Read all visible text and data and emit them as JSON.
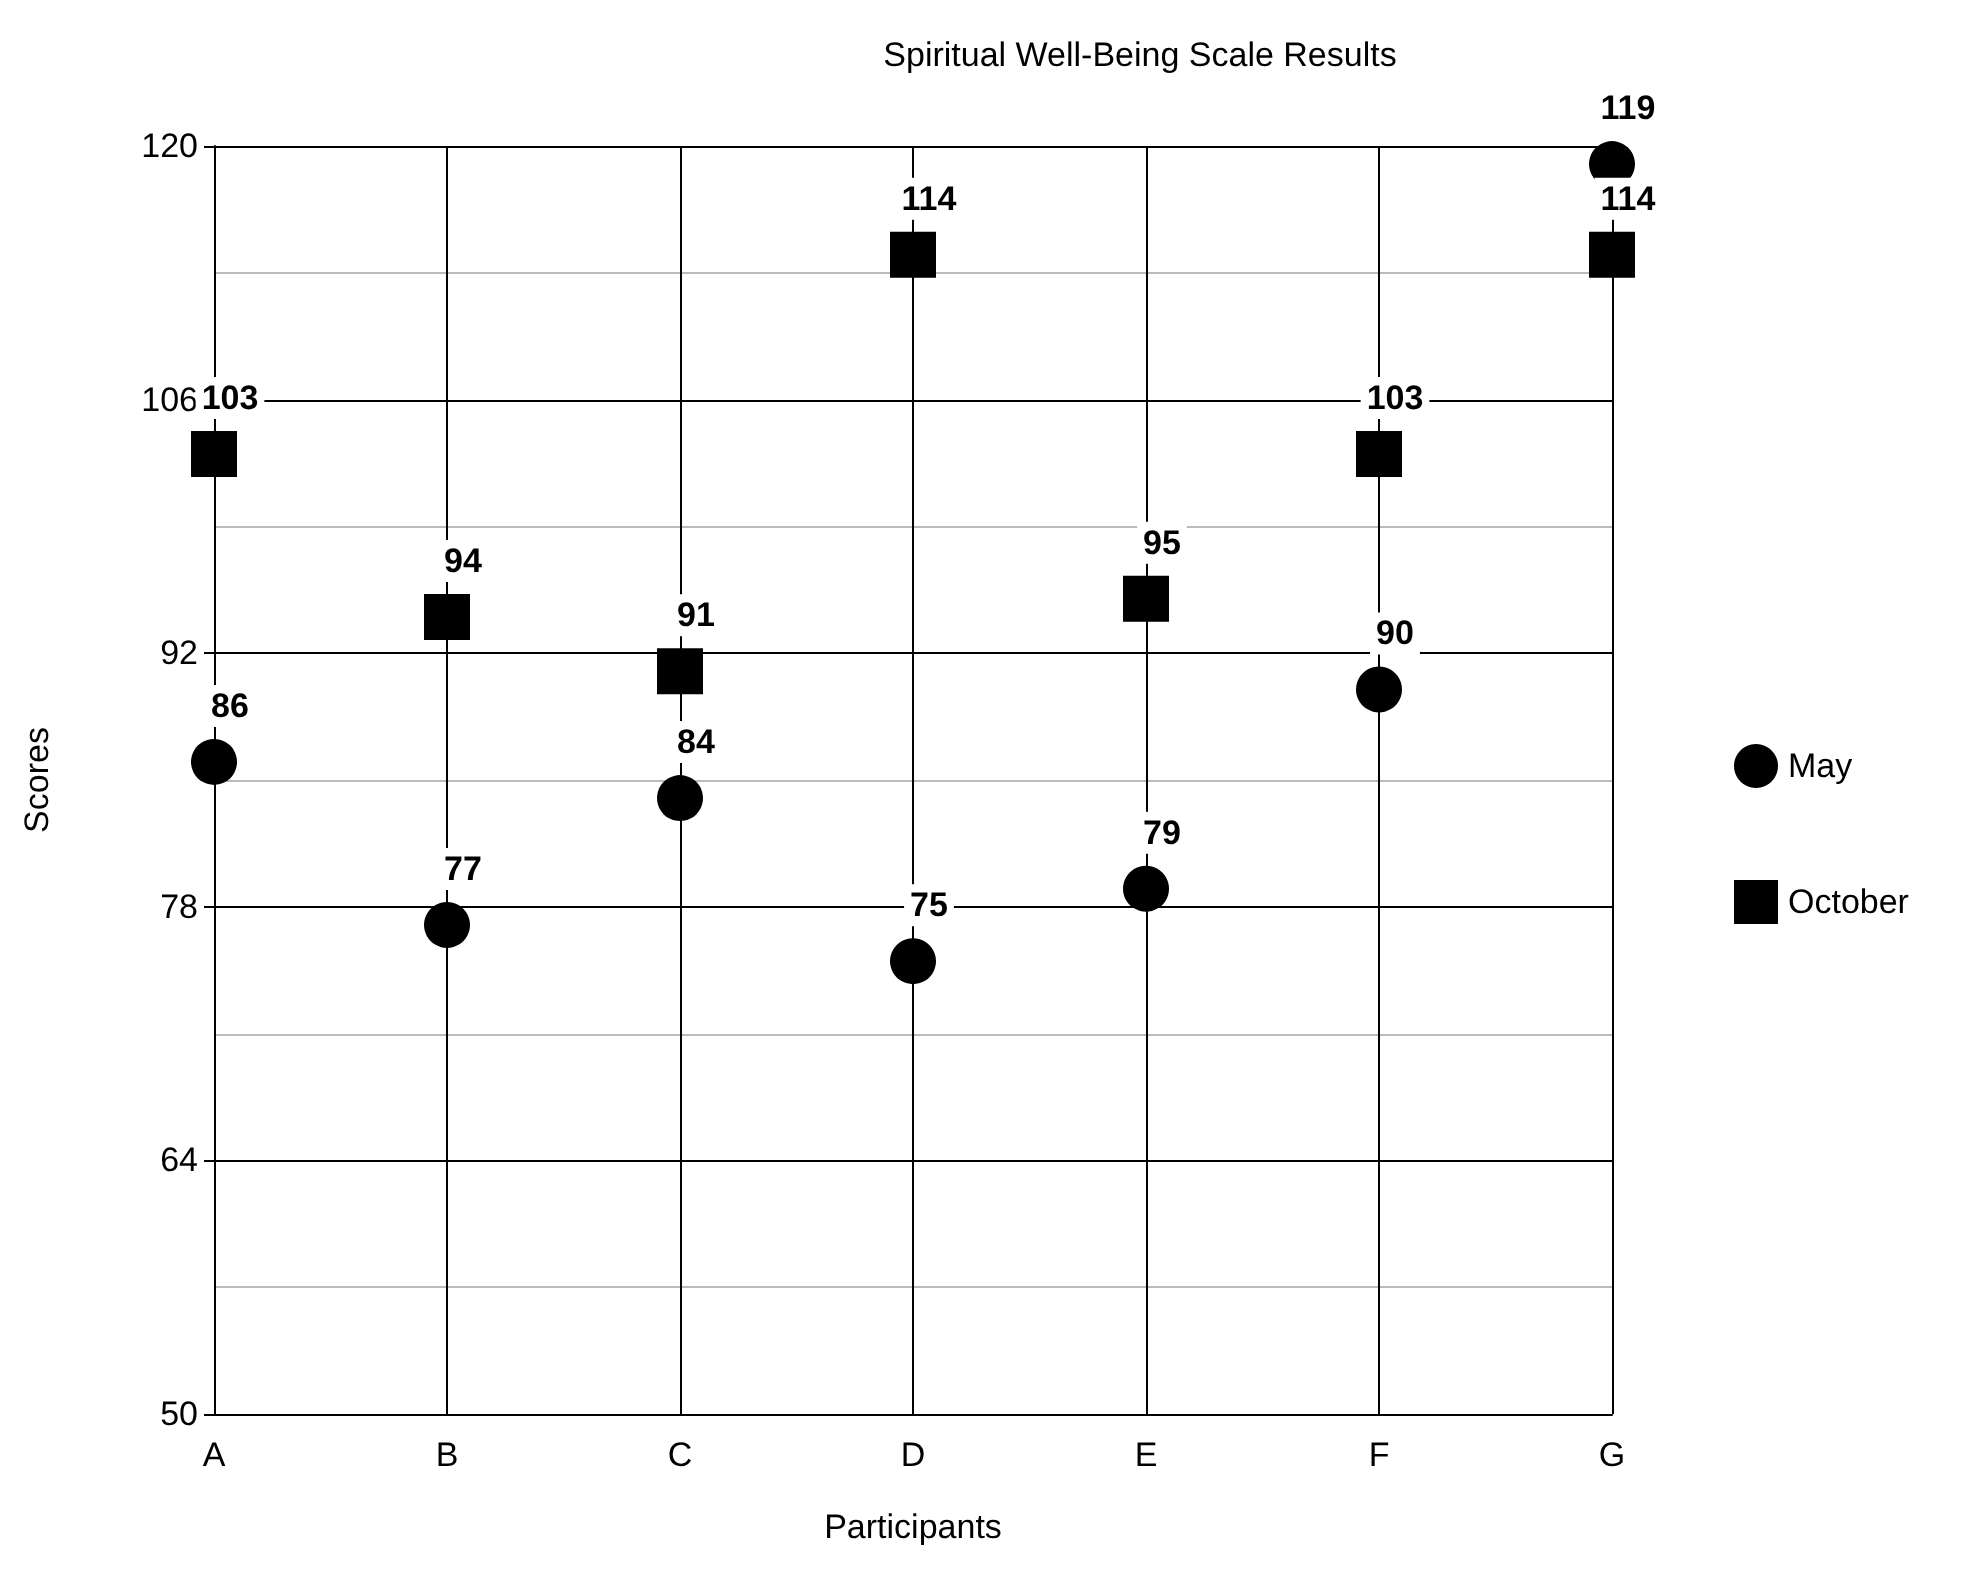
{
  "chart_data": {
    "type": "scatter",
    "title": "Spiritual Well-Being Scale Results",
    "xlabel": "Participants",
    "ylabel": "Scores",
    "categories": [
      "A",
      "B",
      "C",
      "D",
      "E",
      "F",
      "G"
    ],
    "series": [
      {
        "name": "May",
        "color": "#000000",
        "marker": "circle",
        "values": [
          86,
          77,
          84,
          75,
          79,
          90,
          119
        ]
      },
      {
        "name": "October",
        "color": "#000000",
        "marker": "square",
        "values": [
          103,
          94,
          91,
          114,
          95,
          103,
          114
        ]
      }
    ],
    "ylim": [
      50,
      120
    ],
    "yticks": [
      50,
      64,
      78,
      92,
      106,
      120
    ],
    "grid": true,
    "legend": "right",
    "data_labels": true
  }
}
